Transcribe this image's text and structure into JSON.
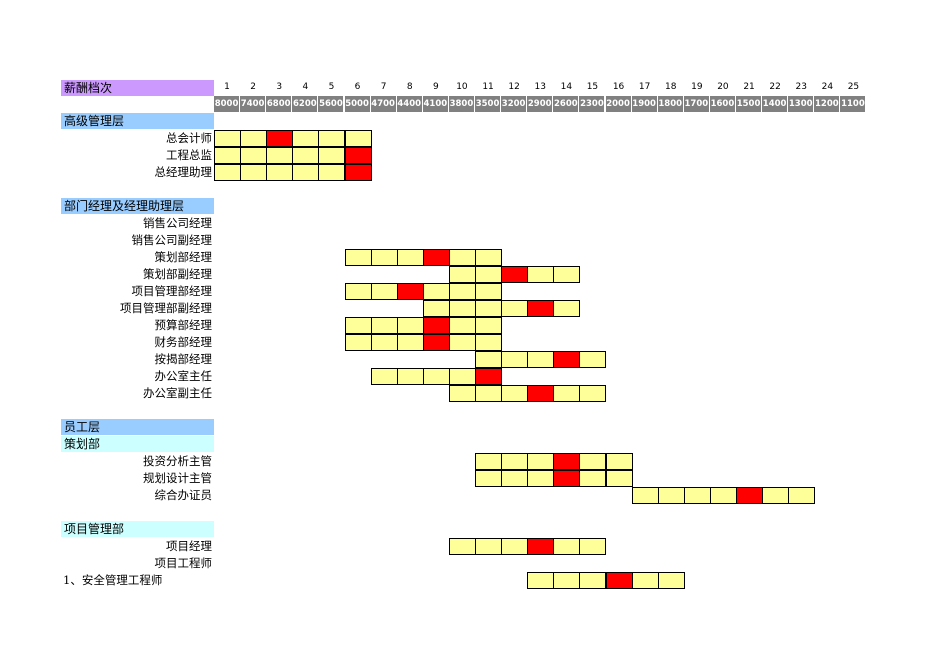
{
  "colors": {
    "header_label_bg": "#cc99ff",
    "salary_bg": "#808080",
    "section_bg": "#99ccff",
    "subsection_bg": "#ccffff",
    "range_cell": "#ffff99",
    "current_cell": "#ff0000"
  },
  "header": {
    "label": "薪酬档次",
    "grades": [
      "1",
      "2",
      "3",
      "4",
      "5",
      "6",
      "7",
      "8",
      "9",
      "10",
      "11",
      "12",
      "13",
      "14",
      "15",
      "16",
      "17",
      "18",
      "19",
      "20",
      "21",
      "22",
      "23",
      "24",
      "25"
    ],
    "salaries": [
      "8000",
      "7400",
      "6800",
      "6200",
      "5600",
      "5000",
      "4700",
      "4400",
      "4100",
      "3800",
      "3500",
      "3200",
      "2900",
      "2600",
      "2300",
      "2000",
      "1900",
      "1800",
      "1700",
      "1600",
      "1500",
      "1400",
      "1300",
      "1200",
      "1100"
    ]
  },
  "sections": [
    {
      "id": "senior",
      "title": "高级管理层",
      "kind": "section",
      "row": 0
    },
    {
      "id": "dept",
      "title": "部门经理及经理助理层",
      "kind": "section",
      "row": 5
    },
    {
      "id": "staff",
      "title": "员工层",
      "kind": "section",
      "row": 18
    },
    {
      "id": "planning",
      "title": "策划部",
      "kind": "subsection",
      "row": 19
    },
    {
      "id": "project",
      "title": "项目管理部",
      "kind": "subsection",
      "row": 24
    }
  ],
  "positions": [
    {
      "row": 1,
      "title": "总会计师",
      "align": "right",
      "from": 1,
      "to": 6,
      "current": [
        3
      ]
    },
    {
      "row": 2,
      "title": "工程总监",
      "align": "right",
      "from": 1,
      "to": 6,
      "current": [
        6
      ]
    },
    {
      "row": 3,
      "title": "总经理助理",
      "align": "right",
      "from": 1,
      "to": 6,
      "current": [
        6
      ]
    },
    {
      "row": 6,
      "title": "销售公司经理",
      "align": "right",
      "from": 0,
      "to": 0,
      "current": []
    },
    {
      "row": 7,
      "title": "销售公司副经理",
      "align": "right",
      "from": 0,
      "to": 0,
      "current": []
    },
    {
      "row": 8,
      "title": "策划部经理",
      "align": "right",
      "from": 6,
      "to": 11,
      "current": [
        9
      ]
    },
    {
      "row": 9,
      "title": "策划部副经理",
      "align": "right",
      "from": 10,
      "to": 14,
      "current": [
        12
      ]
    },
    {
      "row": 10,
      "title": "项目管理部经理",
      "align": "right",
      "from": 6,
      "to": 11,
      "current": [
        8
      ]
    },
    {
      "row": 11,
      "title": "项目管理部副经理",
      "align": "right",
      "from": 9,
      "to": 14,
      "current": [
        13
      ]
    },
    {
      "row": 12,
      "title": "预算部经理",
      "align": "right",
      "from": 6,
      "to": 11,
      "current": [
        9
      ]
    },
    {
      "row": 13,
      "title": "财务部经理",
      "align": "right",
      "from": 6,
      "to": 11,
      "current": [
        9
      ]
    },
    {
      "row": 14,
      "title": "按揭部经理",
      "align": "right",
      "from": 11,
      "to": 15,
      "current": [
        14
      ]
    },
    {
      "row": 15,
      "title": "办公室主任",
      "align": "right",
      "from": 7,
      "to": 11,
      "current": [
        11
      ]
    },
    {
      "row": 16,
      "title": "办公室副主任",
      "align": "right",
      "from": 10,
      "to": 15,
      "current": [
        13
      ]
    },
    {
      "row": 20,
      "title": "投资分析主管",
      "align": "right",
      "from": 11,
      "to": 16,
      "current": [
        14
      ]
    },
    {
      "row": 21,
      "title": "规划设计主管",
      "align": "right",
      "from": 11,
      "to": 16,
      "current": [
        14
      ]
    },
    {
      "row": 22,
      "title": "综合办证员",
      "align": "right",
      "from": 17,
      "to": 23,
      "current": [
        21
      ]
    },
    {
      "row": 25,
      "title": "项目经理",
      "align": "right",
      "from": 10,
      "to": 15,
      "current": [
        13
      ]
    },
    {
      "row": 26,
      "title": "项目工程师",
      "align": "right",
      "from": 0,
      "to": 0,
      "current": []
    },
    {
      "row": 27,
      "title": "1、安全管理工程师",
      "align": "left",
      "from": 13,
      "to": 18,
      "current": [
        16
      ]
    }
  ]
}
